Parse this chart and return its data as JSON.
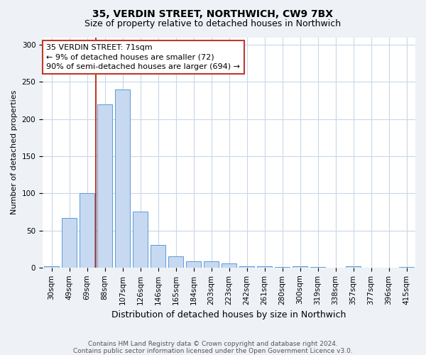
{
  "title1": "35, VERDIN STREET, NORTHWICH, CW9 7BX",
  "title2": "Size of property relative to detached houses in Northwich",
  "xlabel": "Distribution of detached houses by size in Northwich",
  "ylabel": "Number of detached properties",
  "categories": [
    "30sqm",
    "49sqm",
    "69sqm",
    "88sqm",
    "107sqm",
    "126sqm",
    "146sqm",
    "165sqm",
    "184sqm",
    "203sqm",
    "223sqm",
    "242sqm",
    "261sqm",
    "280sqm",
    "300sqm",
    "319sqm",
    "338sqm",
    "357sqm",
    "377sqm",
    "396sqm",
    "415sqm"
  ],
  "values": [
    2,
    67,
    100,
    220,
    240,
    75,
    30,
    15,
    8,
    8,
    6,
    2,
    2,
    1,
    2,
    1,
    0,
    2,
    0,
    0,
    1
  ],
  "bar_color": "#c6d9f1",
  "bar_edge_color": "#5b9bd5",
  "red_line_color": "#c0392b",
  "annotation_text_line1": "35 VERDIN STREET: 71sqm",
  "annotation_text_line2": "← 9% of detached houses are smaller (72)",
  "annotation_text_line3": "90% of semi-detached houses are larger (694) →",
  "annotation_box_color": "white",
  "annotation_box_edge": "#c0392b",
  "ylim": [
    0,
    310
  ],
  "yticks": [
    0,
    50,
    100,
    150,
    200,
    250,
    300
  ],
  "footnote1": "Contains HM Land Registry data © Crown copyright and database right 2024.",
  "footnote2": "Contains public sector information licensed under the Open Government Licence v3.0.",
  "background_color": "#eef2f7",
  "plot_bg_color": "white",
  "grid_color": "#c8d8e8",
  "title1_fontsize": 10,
  "title2_fontsize": 9,
  "ylabel_fontsize": 8,
  "xlabel_fontsize": 9,
  "tick_fontsize": 7.5,
  "footnote_fontsize": 6.5
}
